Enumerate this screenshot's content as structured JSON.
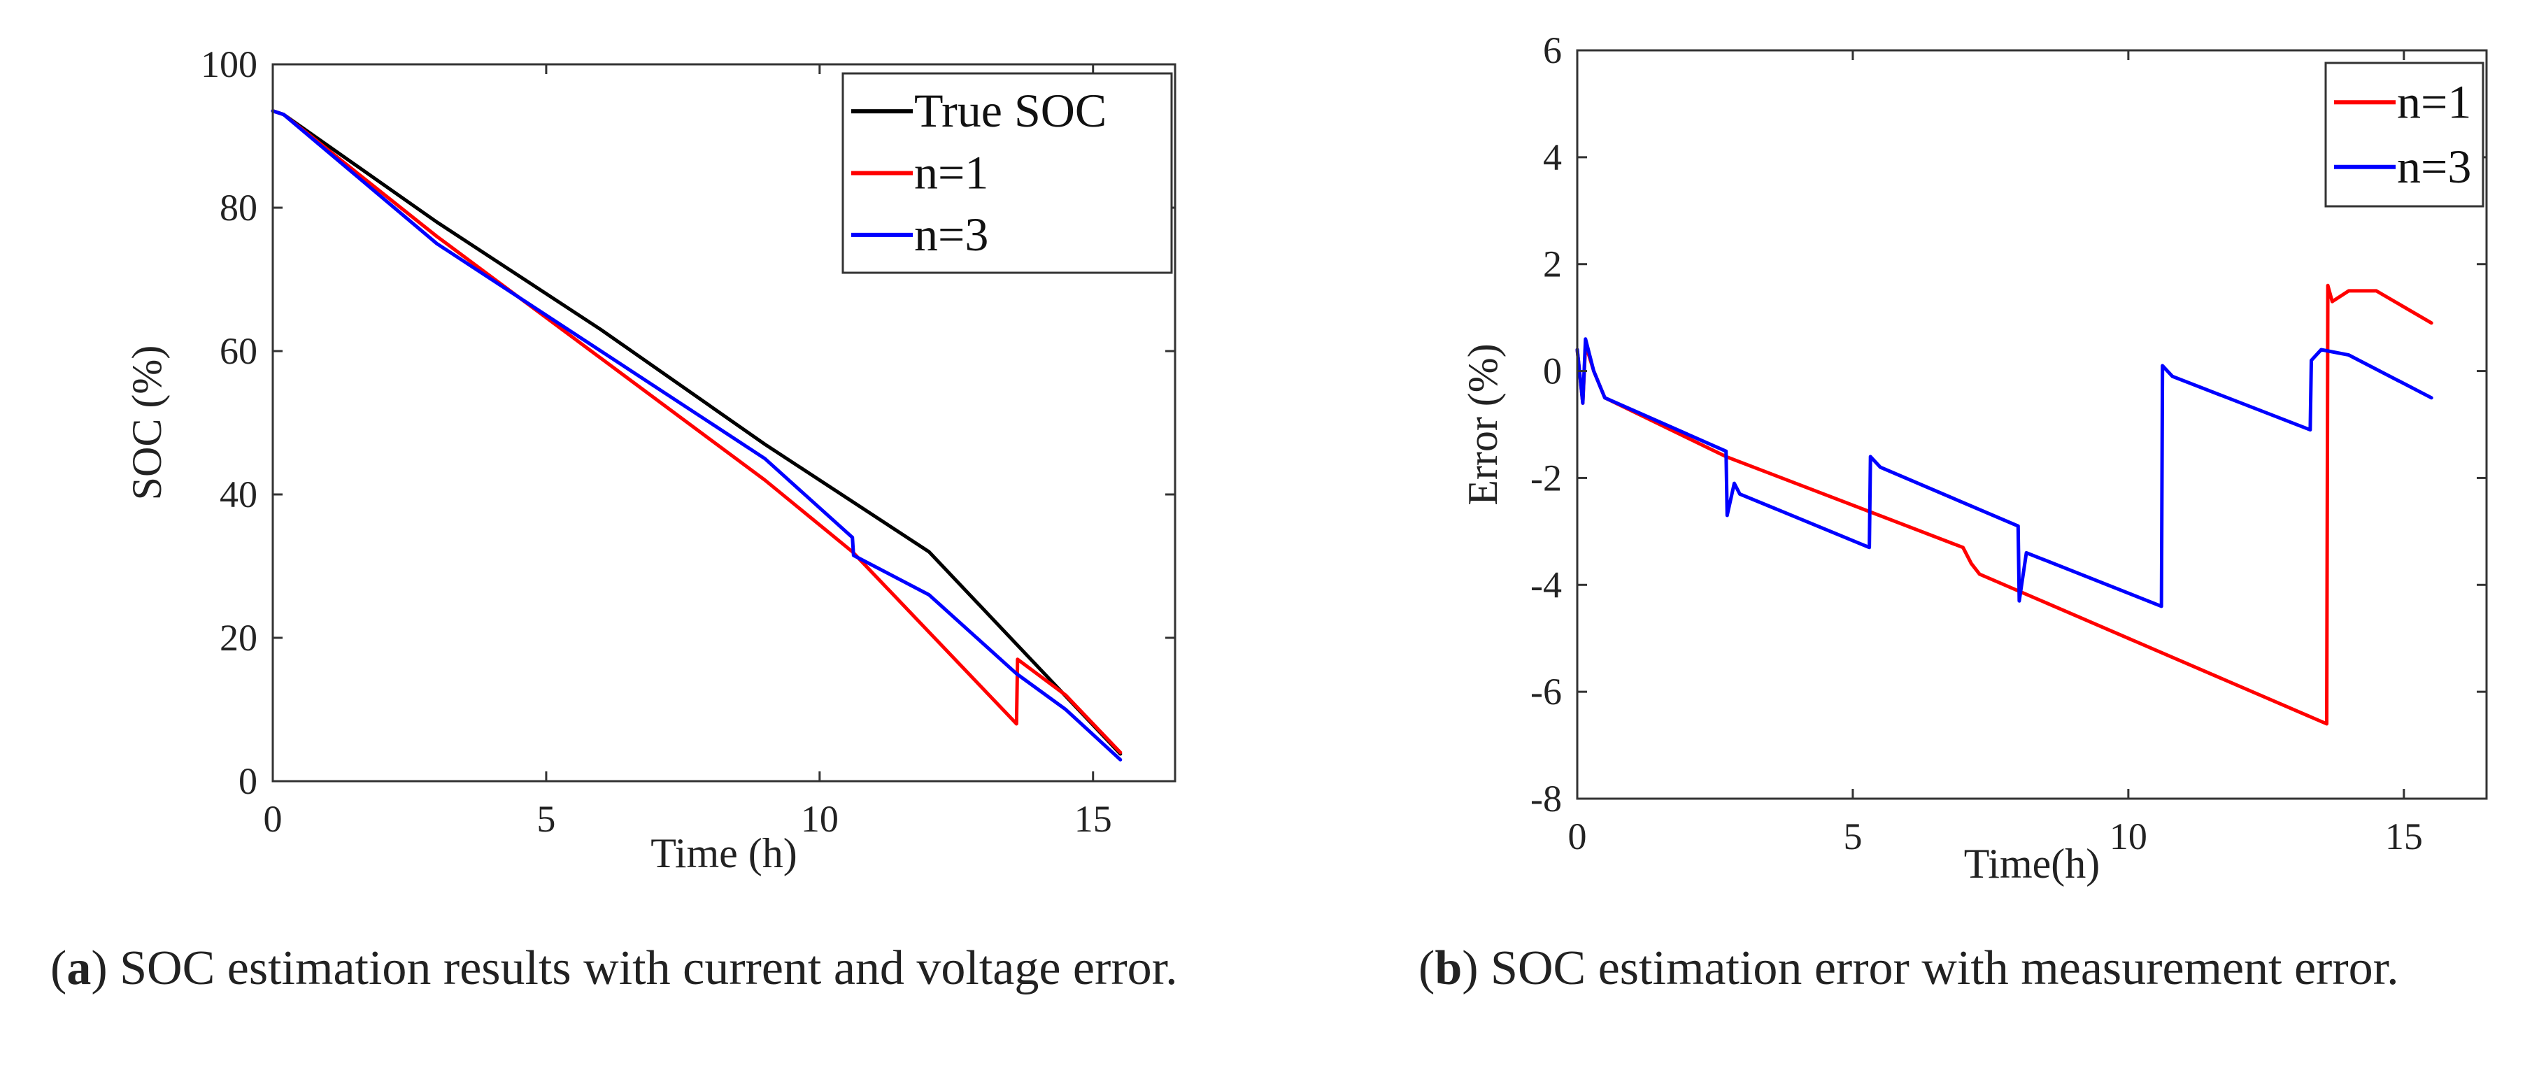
{
  "chart_data": [
    {
      "type": "line",
      "panel": "a",
      "xlabel": "Time (h)",
      "ylabel": "SOC (%)",
      "xlim": [
        0,
        16.5
      ],
      "ylim": [
        0,
        100
      ],
      "xticks": [
        "0",
        "5",
        "10",
        "15"
      ],
      "yticks": [
        "0",
        "20",
        "40",
        "60",
        "80",
        "100"
      ],
      "legend": {
        "placement": "top-right",
        "entries": [
          "True SOC",
          "n=1",
          "n=3"
        ]
      },
      "series": [
        {
          "name": "True SOC",
          "color": "#000000",
          "x": [
            0,
            0.2,
            3,
            6,
            9,
            12,
            15.5
          ],
          "y": [
            93.5,
            93,
            78,
            63,
            47,
            32,
            3.8
          ]
        },
        {
          "name": "n=1",
          "color": "#ff0000",
          "x": [
            0,
            0.2,
            3,
            6,
            9,
            10.6,
            13.6,
            13.62,
            14.5,
            15.5
          ],
          "y": [
            93.5,
            93,
            76,
            59,
            42,
            32,
            8,
            17,
            12,
            4
          ]
        },
        {
          "name": "n=3",
          "color": "#0000ff",
          "x": [
            0,
            0.2,
            3,
            6,
            9,
            10.6,
            10.62,
            12,
            13.6,
            14.5,
            15.5
          ],
          "y": [
            93.5,
            93,
            75,
            60,
            45,
            34,
            31.5,
            26,
            15,
            10,
            3
          ]
        }
      ]
    },
    {
      "type": "line",
      "panel": "b",
      "xlabel": "Time(h)",
      "ylabel": "Error (%)",
      "xlim": [
        0,
        16.5
      ],
      "ylim": [
        -8,
        6
      ],
      "xticks": [
        "0",
        "5",
        "10",
        "15"
      ],
      "yticks": [
        "-8",
        "-6",
        "-4",
        "-2",
        "0",
        "2",
        "4",
        "6"
      ],
      "legend": {
        "placement": "top-right",
        "entries": [
          "n=1",
          "n=3"
        ]
      },
      "series": [
        {
          "name": "n=1",
          "color": "#ff0000",
          "x": [
            0,
            0.1,
            0.15,
            0.3,
            0.5,
            2.7,
            7.0,
            7.15,
            7.3,
            13.6,
            13.62,
            13.7,
            14.0,
            14.5,
            15.5
          ],
          "y": [
            0.4,
            -0.6,
            0.5,
            0,
            -0.5,
            -1.6,
            -3.3,
            -3.6,
            -3.8,
            -6.6,
            1.6,
            1.3,
            1.5,
            1.5,
            0.9
          ]
        },
        {
          "name": "n=3",
          "color": "#0000ff",
          "x": [
            0,
            0.1,
            0.15,
            0.3,
            0.5,
            2.7,
            2.72,
            2.85,
            2.95,
            5.3,
            5.32,
            5.5,
            8.0,
            8.02,
            8.15,
            10.6,
            10.62,
            10.8,
            13.3,
            13.32,
            13.5,
            14.0,
            15.5
          ],
          "y": [
            0.4,
            -0.6,
            0.6,
            0,
            -0.5,
            -1.5,
            -2.7,
            -2.1,
            -2.3,
            -3.3,
            -1.6,
            -1.8,
            -2.9,
            -4.3,
            -3.4,
            -4.4,
            0.1,
            -0.1,
            -1.1,
            0.2,
            0.4,
            0.3,
            -0.5
          ]
        }
      ]
    }
  ],
  "captions": {
    "a": {
      "letter": "a",
      "text": ") SOC estimation results with current and voltage error."
    },
    "b": {
      "letter": "b",
      "text": ") SOC estimation error with measurement error."
    }
  }
}
